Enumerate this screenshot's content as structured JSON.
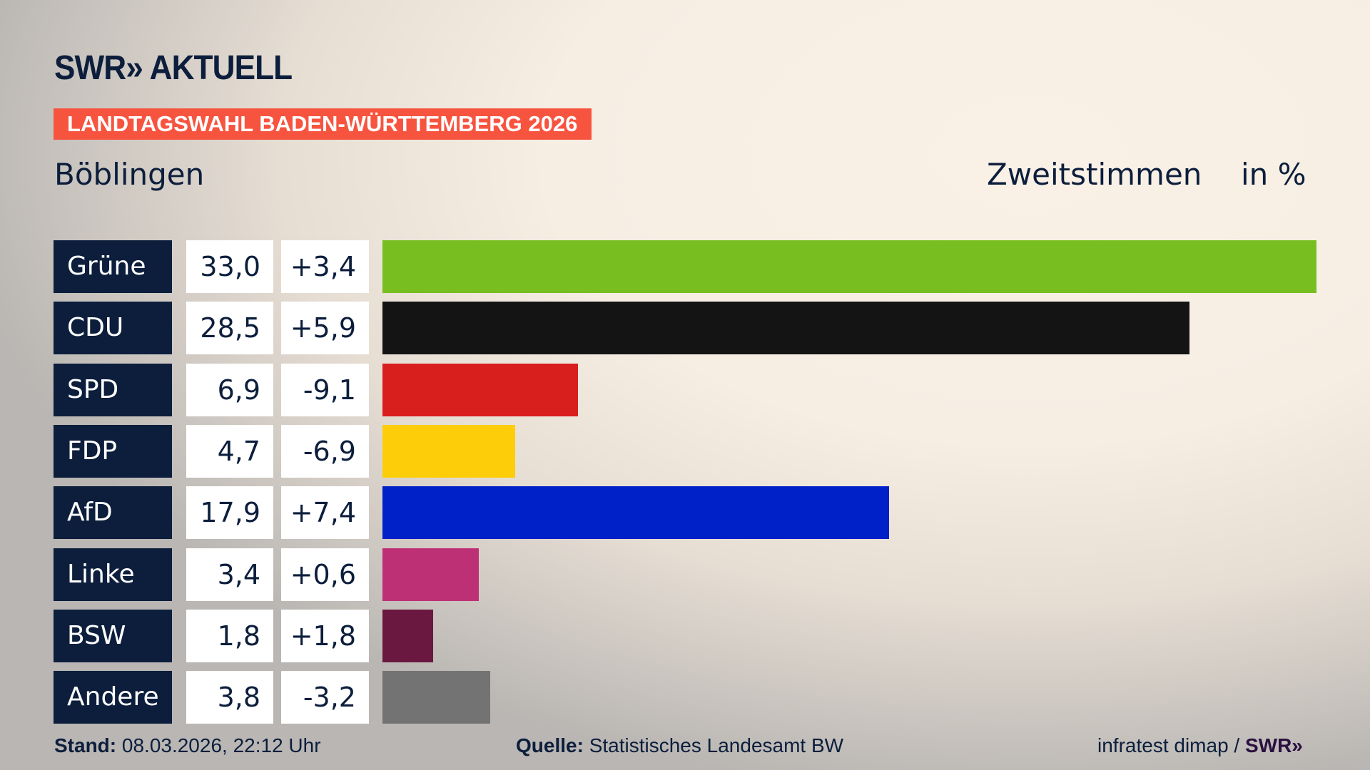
{
  "header": {
    "logo": "SWR» AKTUELL",
    "banner": "LANDTAGSWAHL BADEN-WÜRTTEMBERG 2026",
    "region": "Böblingen",
    "metric": "Zweitstimmen",
    "unit": "in %"
  },
  "chart_data": {
    "type": "bar",
    "orientation": "horizontal",
    "categories": [
      "Grüne",
      "CDU",
      "SPD",
      "FDP",
      "AfD",
      "Linke",
      "BSW",
      "Andere"
    ],
    "values": [
      33.0,
      28.5,
      6.9,
      4.7,
      17.9,
      3.4,
      1.8,
      3.8
    ],
    "value_labels": [
      "33,0",
      "28,5",
      "6,9",
      "4,7",
      "17,9",
      "3,4",
      "1,8",
      "3,8"
    ],
    "diff_labels": [
      "+3,4",
      "+5,9",
      "-9,1",
      "-6,9",
      "+7,4",
      "+0,6",
      "+1,8",
      "-3,2"
    ],
    "colors": [
      "#78be20",
      "#141414",
      "#d91e1e",
      "#fecd09",
      "#0020c8",
      "#be3075",
      "#6a1840",
      "#737373"
    ],
    "title": "Zweitstimmen",
    "ylabel": "in %",
    "grid": false
  },
  "footer": {
    "stand_label": "Stand:",
    "stand_value": "08.03.2026, 22:12 Uhr",
    "source_label": "Quelle:",
    "source_value": "Statistisches Landesamt BW",
    "credit": "infratest dimap /",
    "credit_logo": "SWR»"
  }
}
